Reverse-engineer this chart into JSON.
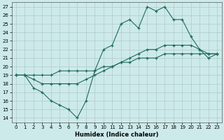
{
  "xlabel": "Humidex (Indice chaleur)",
  "background_color": "#cdeaea",
  "grid_color": "#b0c8c8",
  "line_color": "#1e6b5e",
  "xlim": [
    -0.5,
    23.5
  ],
  "ylim": [
    13.5,
    27.5
  ],
  "xticks": [
    0,
    1,
    2,
    3,
    4,
    5,
    6,
    7,
    8,
    9,
    10,
    11,
    12,
    13,
    14,
    15,
    16,
    17,
    18,
    19,
    20,
    21,
    22,
    23
  ],
  "yticks": [
    14,
    15,
    16,
    17,
    18,
    19,
    20,
    21,
    22,
    23,
    24,
    25,
    26,
    27
  ],
  "curve1_x": [
    0,
    1,
    2,
    3,
    4,
    5,
    6,
    7,
    8,
    9,
    10,
    11,
    12,
    13,
    14,
    15,
    16,
    17,
    18,
    19,
    20,
    21,
    22,
    23
  ],
  "curve1_y": [
    19,
    19,
    17.5,
    17,
    16,
    15.5,
    15,
    14,
    16,
    19.5,
    22,
    22.5,
    25,
    25.5,
    24.5,
    27,
    26.5,
    27,
    25.5,
    25.5,
    23.5,
    22,
    21,
    21.5
  ],
  "curve2_x": [
    0,
    1,
    2,
    3,
    4,
    5,
    6,
    7,
    8,
    9,
    10,
    11,
    12,
    13,
    14,
    15,
    16,
    17,
    18,
    19,
    20,
    21,
    22,
    23
  ],
  "curve2_y": [
    19,
    19,
    18.5,
    18,
    18,
    18,
    18,
    18,
    18.5,
    19,
    19.5,
    20,
    20.5,
    21,
    21.5,
    22,
    22,
    22.5,
    22.5,
    22.5,
    22.5,
    22,
    21.5,
    21.5
  ],
  "curve3_x": [
    0,
    1,
    2,
    3,
    4,
    5,
    6,
    7,
    8,
    9,
    10,
    11,
    12,
    13,
    14,
    15,
    16,
    17,
    18,
    19,
    20,
    21,
    22,
    23
  ],
  "curve3_y": [
    19,
    19,
    19,
    19,
    19,
    19.5,
    19.5,
    19.5,
    19.5,
    19.5,
    20,
    20,
    20.5,
    20.5,
    21,
    21,
    21,
    21.5,
    21.5,
    21.5,
    21.5,
    21.5,
    21.5,
    21.5
  ]
}
